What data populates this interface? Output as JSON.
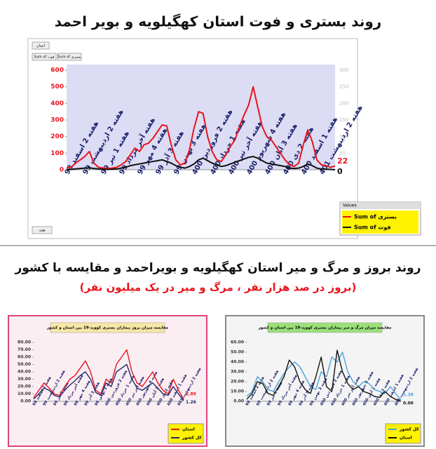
{
  "section_title": "روند بروز و مرگ و میر استان کهگیلویه و بویراحمد و مقایسه با کشور",
  "section_subtitle": "(بروز در صد هزار نفر ، مرگ و میر در یک میلیون نفر)",
  "chart_data": [
    {
      "type": "line",
      "title": "روند بستری و فوت استان کهگیلویه و بویر احمد",
      "field_button": "استان",
      "axis_button": "هفته",
      "filter_buttons": [
        "Sum of فوت",
        "Sum of بستری"
      ],
      "legend_title": "Values",
      "legend": "right-bottom",
      "categories": [
        "هفته 2 اسفند 98",
        null,
        null,
        null,
        "هفته 2 اردیبهشت 99",
        null,
        null,
        null,
        "هفته 1 تیر 99",
        null,
        null,
        null,
        "هفته آخر مرداد 99",
        null,
        null,
        null,
        "هفته 4 مهر 99",
        null,
        null,
        null,
        "هفته 3 آذر 99",
        null,
        null,
        null,
        "هفته 3 بهمن 99",
        null,
        null,
        null,
        "هفته 2 فروردین 400",
        null,
        null,
        null,
        "هفته 1 خرداد 400",
        null,
        null,
        null,
        "هفته آخر تیر 400",
        null,
        null,
        null,
        "هفته 4 شهریور 400",
        null,
        null,
        null,
        "هفته 3 آبان 400",
        null,
        null,
        null,
        "هفته 2 دی 400",
        null,
        null,
        null,
        "هفته 1 اسفند 400",
        null,
        null,
        null,
        "هفته 2 اردیبهشت 401",
        null,
        null,
        null
      ],
      "series": [
        {
          "name": "Sum of بستری",
          "color": "#e8141c",
          "values": [
            10,
            15,
            40,
            60,
            80,
            110,
            40,
            15,
            10,
            8,
            10,
            15,
            30,
            50,
            90,
            130,
            110,
            150,
            160,
            190,
            230,
            270,
            265,
            150,
            60,
            30,
            40,
            120,
            250,
            350,
            340,
            200,
            110,
            60,
            50,
            90,
            140,
            180,
            260,
            330,
            390,
            500,
            380,
            260,
            200,
            180,
            140,
            100,
            60,
            30,
            20,
            40,
            150,
            240,
            170,
            60,
            30,
            25,
            15,
            22
          ]
        },
        {
          "name": "Sum of فوت",
          "color": "#111111",
          "values": [
            0,
            2,
            5,
            8,
            10,
            12,
            8,
            5,
            3,
            2,
            3,
            5,
            10,
            15,
            25,
            30,
            35,
            40,
            45,
            50,
            55,
            60,
            50,
            40,
            25,
            15,
            10,
            20,
            35,
            60,
            70,
            55,
            40,
            30,
            20,
            25,
            35,
            45,
            55,
            65,
            75,
            80,
            70,
            55,
            40,
            35,
            30,
            25,
            20,
            10,
            8,
            10,
            20,
            35,
            25,
            10,
            5,
            3,
            2,
            0
          ]
        }
      ],
      "ylim": [
        0,
        600
      ],
      "yticks": [
        0,
        100,
        200,
        300,
        400,
        500,
        600
      ],
      "y2lim": [
        0,
        300
      ],
      "y2ticks": [
        0,
        50,
        100,
        150,
        200,
        250,
        300
      ]
    },
    {
      "type": "line",
      "title": "مقایسه میزان بروز بیماران بستری کووید-19 بین استان و کشور",
      "categories": [
        "هفته 2 اسفند 98",
        null,
        "هفته 2 اردیبهشت 99",
        null,
        "هفته 1 تیر 99",
        null,
        "هفته آخر مرداد 99",
        null,
        "هفته 4 مهر 99",
        null,
        "هفته 3 آذر 99",
        null,
        "هفته 3 بهمن 99",
        null,
        "هفته 2 فروردین 400",
        null,
        "هفته 1 خرداد 400",
        null,
        "هفته آخر تیر 400",
        null,
        "هفته 4 شهریور 400",
        null,
        "هفته 3 آبان 400",
        null,
        "هفته 2 دی 400",
        null,
        "هفته 1 اسفند 400",
        null,
        "هفته 2 اردیبهشت 401",
        null
      ],
      "series": [
        {
          "name": "استان",
          "color": "#e8141c",
          "values": [
            5,
            15,
            25,
            18,
            10,
            8,
            20,
            30,
            35,
            45,
            55,
            40,
            15,
            10,
            30,
            25,
            50,
            60,
            70,
            40,
            25,
            20,
            30,
            40,
            25,
            15,
            10,
            30,
            15,
            2.89
          ]
        },
        {
          "name": "کل کشور",
          "color": "#1f2a6e",
          "values": [
            3,
            10,
            18,
            15,
            8,
            6,
            15,
            22,
            28,
            35,
            40,
            30,
            12,
            8,
            25,
            20,
            40,
            45,
            50,
            30,
            18,
            15,
            20,
            25,
            18,
            10,
            8,
            20,
            10,
            1.26
          ]
        }
      ],
      "ylim": [
        0,
        80
      ],
      "yticks": [
        {
          "value": 0,
          "label": "0.00"
        },
        {
          "value": 10,
          "label": "10.00"
        },
        {
          "value": 20,
          "label": "20.00"
        },
        {
          "value": 30,
          "label": "30.00"
        },
        {
          "value": 40,
          "label": "40.00"
        },
        {
          "value": 50,
          "label": "50.00"
        },
        {
          "value": 60,
          "label": "60.00"
        },
        {
          "value": 70,
          "label": "70.00"
        },
        {
          "value": 80,
          "label": "80.00"
        }
      ]
    },
    {
      "type": "line",
      "title": "مقایسه میزان مرگ و میر بیماران بستری کووید-19 بین استان و کشور",
      "categories": [
        "هفته 2 اسفند 98",
        null,
        "هفته 2 اردیبهشت 99",
        null,
        "هفته 1 تیر 99",
        null,
        "هفته آخر مرداد 99",
        null,
        "هفته 4 مهر 99",
        null,
        "هفته 3 آذر 99",
        null,
        "هفته 3 بهمن 99",
        null,
        "هفته 2 فروردین 400",
        null,
        "هفته 1 خرداد 400",
        null,
        "هفته آخر تیر 400",
        null,
        "هفته 4 شهریور 400",
        null,
        "هفته 3 آبان 400",
        null,
        "هفته 2 دی 400",
        null,
        "هفته 1 اسفند 400",
        null,
        "هفته 2 اردیبهشت 401",
        null
      ],
      "series": [
        {
          "name": "کل کشور",
          "color": "#4aa3d8",
          "values": [
            5,
            10,
            25,
            20,
            12,
            10,
            20,
            28,
            35,
            40,
            35,
            25,
            15,
            12,
            30,
            25,
            45,
            40,
            50,
            30,
            20,
            15,
            20,
            18,
            12,
            10,
            8,
            15,
            8,
            1.38
          ]
        },
        {
          "name": "استان",
          "color": "#111111",
          "values": [
            2,
            8,
            20,
            18,
            8,
            6,
            15,
            25,
            42,
            35,
            20,
            12,
            8,
            25,
            45,
            15,
            10,
            52,
            30,
            18,
            12,
            15,
            10,
            8,
            5,
            4,
            10,
            5,
            2,
            0
          ],
          "value_labels": [
            null,
            null,
            null,
            null,
            null,
            null,
            null,
            null,
            null,
            null,
            null,
            null,
            null,
            null,
            null,
            null,
            null,
            null,
            null,
            null,
            null,
            null,
            null,
            null,
            null,
            null,
            null,
            null,
            null,
            "0.00"
          ]
        }
      ],
      "ylim": [
        0,
        60
      ],
      "yticks": [
        {
          "value": 0,
          "label": "0.00"
        },
        {
          "value": 10,
          "label": "10.00"
        },
        {
          "value": 20,
          "label": "20.00"
        },
        {
          "value": 30,
          "label": "30.00"
        },
        {
          "value": 40,
          "label": "40.00"
        },
        {
          "value": 50,
          "label": "50.00"
        },
        {
          "value": 60,
          "label": "60.00"
        }
      ]
    }
  ]
}
